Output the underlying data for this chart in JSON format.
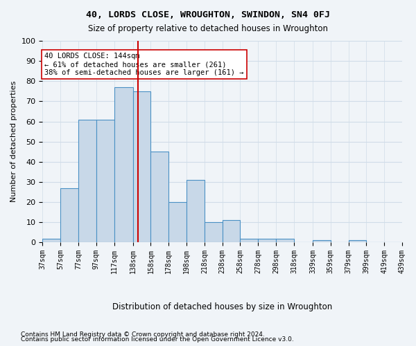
{
  "title": "40, LORDS CLOSE, WROUGHTON, SWINDON, SN4 0FJ",
  "subtitle": "Size of property relative to detached houses in Wroughton",
  "xlabel": "Distribution of detached houses by size in Wroughton",
  "ylabel": "Number of detached properties",
  "bar_edges": [
    37,
    57,
    77,
    97,
    117,
    138,
    158,
    178,
    198,
    218,
    238,
    258,
    278,
    298,
    318,
    339,
    359,
    379,
    399,
    419,
    439
  ],
  "bar_heights": [
    2,
    27,
    61,
    61,
    77,
    75,
    45,
    20,
    31,
    10,
    11,
    2,
    2,
    2,
    0,
    1,
    0,
    1,
    0,
    0
  ],
  "bar_color": "#c8d8e8",
  "bar_edgecolor": "#4a90c4",
  "vline_x": 144,
  "vline_color": "#cc0000",
  "annotation_text": "40 LORDS CLOSE: 144sqm\n← 61% of detached houses are smaller (261)\n38% of semi-detached houses are larger (161) →",
  "annotation_box_color": "#ffffff",
  "annotation_box_edgecolor": "#cc0000",
  "ylim": [
    0,
    100
  ],
  "yticks": [
    0,
    10,
    20,
    30,
    40,
    50,
    60,
    70,
    80,
    90,
    100
  ],
  "tick_labels": [
    "37sqm",
    "57sqm",
    "77sqm",
    "97sqm",
    "117sqm",
    "138sqm",
    "158sqm",
    "178sqm",
    "198sqm",
    "218sqm",
    "238sqm",
    "258sqm",
    "278sqm",
    "298sqm",
    "318sqm",
    "339sqm",
    "359sqm",
    "379sqm",
    "399sqm",
    "419sqm",
    "439sqm"
  ],
  "grid_color": "#d0dce8",
  "footer_line1": "Contains HM Land Registry data © Crown copyright and database right 2024.",
  "footer_line2": "Contains public sector information licensed under the Open Government Licence v3.0.",
  "background_color": "#f0f4f8"
}
